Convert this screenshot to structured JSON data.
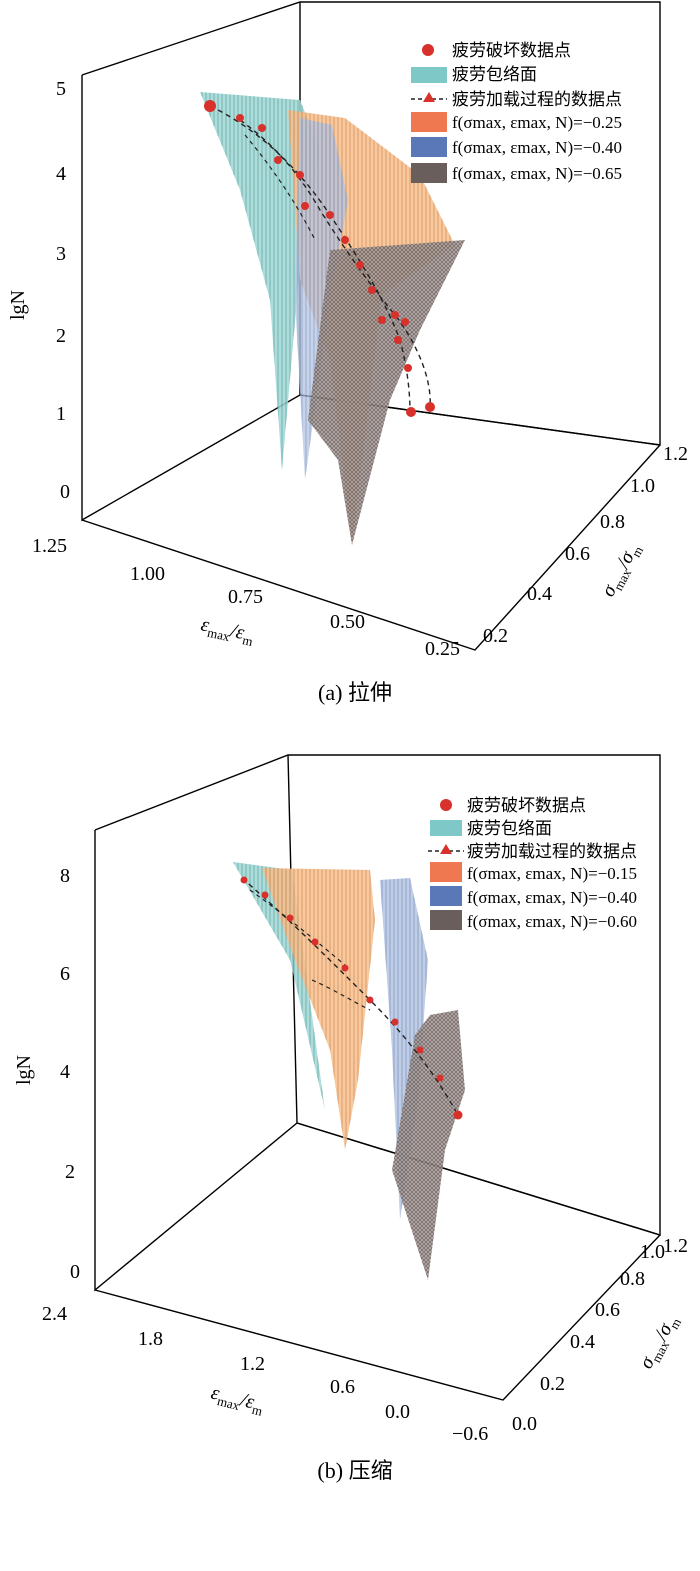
{
  "chart_data": [
    {
      "type": "surface3d",
      "caption": "(a) 拉伸",
      "axes": {
        "x": {
          "label_main": "ε",
          "label_sub": "max",
          "label_sep": "/ε",
          "label_sub2": "m",
          "ticks": [
            "1.25",
            "1.00",
            "0.75",
            "0.50",
            "0.25"
          ],
          "range": [
            0.25,
            1.25
          ]
        },
        "y": {
          "label_main": "σ",
          "label_sub": "max",
          "label_sep": "/σ",
          "label_sub2": "m",
          "ticks": [
            "0.2",
            "0.4",
            "0.6",
            "0.8",
            "1.0",
            "1.2"
          ],
          "range": [
            0.2,
            1.2
          ]
        },
        "z": {
          "label": "lgN",
          "ticks": [
            "0",
            "1",
            "2",
            "3",
            "4",
            "5"
          ],
          "range": [
            0,
            5
          ]
        }
      },
      "legend": [
        {
          "kind": "dot",
          "color": "#d8302a",
          "label": "疲劳破坏数据点"
        },
        {
          "kind": "swatch",
          "color": "#7fc8c8",
          "label": "疲劳包络面"
        },
        {
          "kind": "dashed-triangle",
          "color": "#d8302a",
          "label": "疲劳加载过程的数据点"
        },
        {
          "kind": "swatch",
          "color": "#f07850",
          "label": "f(σmax, εmax, N)=−0.25"
        },
        {
          "kind": "swatch",
          "color": "#5a78b8",
          "label": "f(σmax, εmax, N)=−0.40"
        },
        {
          "kind": "swatch",
          "color": "#6a5e5c",
          "label": "f(σmax, εmax, N)=−0.65"
        }
      ],
      "series": [
        {
          "name": "疲劳包络面",
          "color": "#7fc8c8"
        },
        {
          "name": "f(σmax, εmax, N)=−0.25",
          "color": "#f0a060"
        },
        {
          "name": "f(σmax, εmax, N)=−0.40",
          "color": "#8aa0c8"
        },
        {
          "name": "f(σmax, εmax, N)=−0.65",
          "color": "#8a7c7a"
        }
      ]
    },
    {
      "type": "surface3d",
      "caption": "(b) 压缩",
      "axes": {
        "x": {
          "label_main": "ε",
          "label_sub": "max",
          "label_sep": "/ε",
          "label_sub2": "m",
          "ticks": [
            "2.4",
            "1.8",
            "1.2",
            "0.6",
            "0.0",
            "−0.6"
          ],
          "range": [
            -0.6,
            2.4
          ]
        },
        "y": {
          "label_main": "σ",
          "label_sub": "max",
          "label_sep": "/σ",
          "label_sub2": "m",
          "ticks": [
            "0.0",
            "0.2",
            "0.4",
            "0.6",
            "0.8",
            "1.0",
            "1.2"
          ],
          "range": [
            0.0,
            1.2
          ]
        },
        "z": {
          "label": "lgN",
          "ticks": [
            "0",
            "2",
            "4",
            "6",
            "8"
          ],
          "range": [
            0,
            8
          ]
        }
      },
      "legend": [
        {
          "kind": "dot",
          "color": "#d8302a",
          "label": "疲劳破坏数据点"
        },
        {
          "kind": "swatch",
          "color": "#7fc8c8",
          "label": "疲劳包络面"
        },
        {
          "kind": "dashed-triangle",
          "color": "#d8302a",
          "label": "疲劳加载过程的数据点"
        },
        {
          "kind": "swatch",
          "color": "#f07850",
          "label": "f(σmax, εmax, N)=−0.15"
        },
        {
          "kind": "swatch",
          "color": "#5a78b8",
          "label": "f(σmax, εmax, N)=−0.40"
        },
        {
          "kind": "swatch",
          "color": "#6a5e5c",
          "label": "f(σmax, εmax, N)=−0.60"
        }
      ],
      "series": [
        {
          "name": "疲劳包络面",
          "color": "#7fc8c8"
        },
        {
          "name": "f(σmax, εmax, N)=−0.15",
          "color": "#f0a060"
        },
        {
          "name": "f(σmax, εmax, N)=−0.40",
          "color": "#8aa0c8"
        },
        {
          "name": "f(σmax, εmax, N)=−0.60",
          "color": "#8a7c7a"
        }
      ]
    }
  ]
}
